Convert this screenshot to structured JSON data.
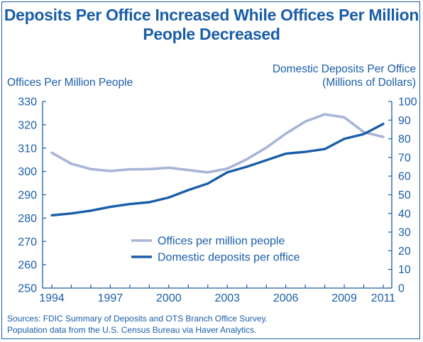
{
  "title_line1": "Deposits Per Office Increased While Offices Per Million",
  "title_line2": "People Decreased",
  "left_axis_title": "Offices Per Million People",
  "right_axis_title_line1": "Domestic Deposits Per Office",
  "right_axis_title_line2": "(Millions of Dollars)",
  "source_line1": "Sources: FDIC Summary of Deposits and OTS Branch Office Survey.",
  "source_line2": "Population data from the U.S. Census Bureau via Haver Analytics.",
  "colors": {
    "text": "#1a5ea8",
    "offices": "#a8b4d8",
    "deposits": "#1a5ea8"
  },
  "chart_data": {
    "type": "line",
    "x": [
      1994,
      1995,
      1996,
      1997,
      1998,
      1999,
      2000,
      2001,
      2002,
      2003,
      2004,
      2005,
      2006,
      2007,
      2008,
      2009,
      2010,
      2011
    ],
    "xticks": [
      "1994",
      "1997",
      "2000",
      "2003",
      "2006",
      "2009",
      "2011"
    ],
    "xlim": [
      1994,
      2011
    ],
    "ylim_left": [
      250,
      330
    ],
    "yticks_left": [
      250,
      260,
      270,
      280,
      290,
      300,
      310,
      320,
      330
    ],
    "ylim_right": [
      0,
      100
    ],
    "yticks_right": [
      0,
      10,
      20,
      30,
      40,
      50,
      60,
      70,
      80,
      90,
      100
    ],
    "legend_position": "bottom-center",
    "series": [
      {
        "name": "Offices per million people",
        "axis": "left",
        "color": "#a8b4d8",
        "values": [
          308,
          303.3,
          301,
          300.2,
          300.9,
          301,
          301.6,
          300.6,
          299.6,
          301.2,
          305.2,
          310.2,
          316.2,
          321.4,
          324.5,
          323.2,
          316.9,
          314.8
        ]
      },
      {
        "name": "Domestic deposits per office",
        "axis": "right",
        "color": "#1a5ea8",
        "values": [
          39,
          40,
          41.5,
          43.5,
          45,
          46,
          48.5,
          52.5,
          56,
          62,
          65,
          68.5,
          72,
          73,
          74.5,
          80,
          82.5,
          88
        ]
      }
    ]
  }
}
